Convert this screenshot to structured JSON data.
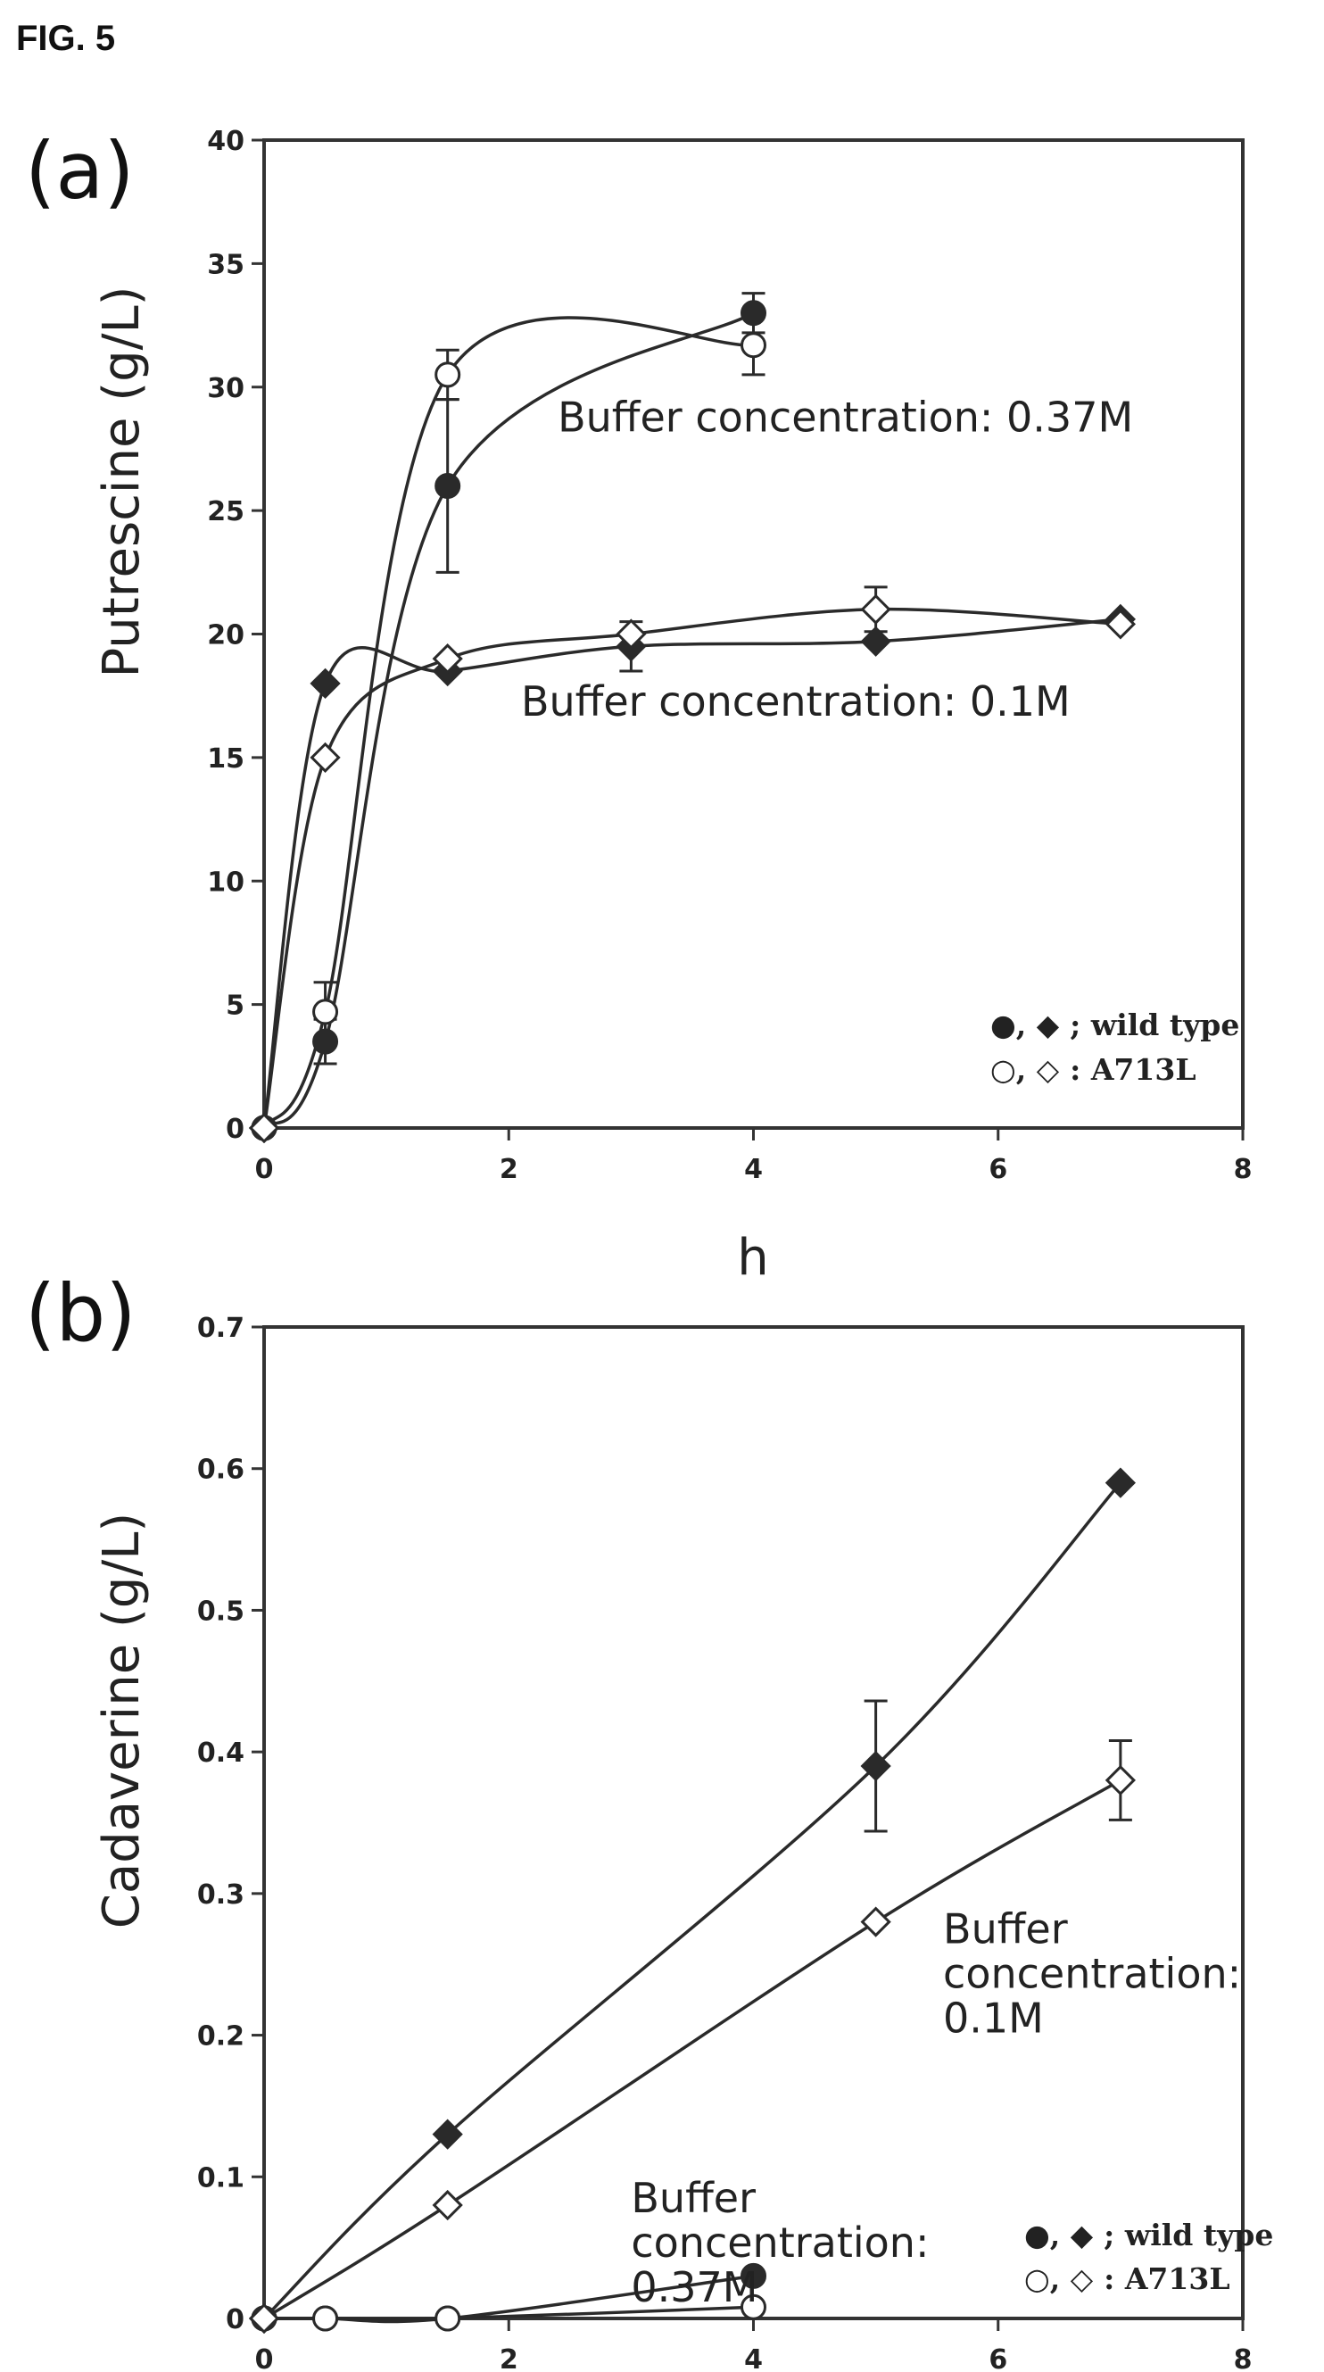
{
  "figure_title": "FIG. 5",
  "colors": {
    "mark": "#2a2a2a",
    "open_fill": "#ffffff",
    "frame": "#333333"
  },
  "chart_data": [
    {
      "type": "line",
      "panel": "(a)",
      "xlabel": "h",
      "ylabel": "Putrescine (g/L)",
      "xlim": [
        0,
        8
      ],
      "ylim": [
        0,
        40
      ],
      "xticks": [
        "0",
        "2",
        "4",
        "6",
        "8"
      ],
      "yticks": [
        "0",
        "5",
        "10",
        "15",
        "20",
        "25",
        "30",
        "35",
        "40"
      ],
      "legend": {
        "position": "bottom-right",
        "entries": [
          {
            "symbols": "●, ◆",
            "text": "; wild type"
          },
          {
            "symbols": "○, ◇",
            "text": ": A713L"
          }
        ]
      },
      "annotations": [
        {
          "text": "Buffer concentration: 0.37M",
          "x": 2.4,
          "y": 28.2
        },
        {
          "text": "Buffer concentration: 0.1M",
          "x": 2.1,
          "y": 16.7
        }
      ],
      "series": [
        {
          "marker": "circle-filled",
          "x": [
            0,
            0.5,
            1.5,
            4
          ],
          "y": [
            0,
            3.5,
            26.0,
            33.0
          ],
          "err": [
            0,
            0.9,
            3.5,
            0.8
          ]
        },
        {
          "marker": "circle-open",
          "x": [
            0,
            0.5,
            1.5,
            4
          ],
          "y": [
            0,
            4.7,
            30.5,
            31.7
          ],
          "err": [
            0,
            1.2,
            1.0,
            1.2
          ]
        },
        {
          "marker": "diamond-filled",
          "x": [
            0,
            0.5,
            1.5,
            3,
            5,
            7
          ],
          "y": [
            0,
            18.0,
            18.5,
            19.5,
            19.7,
            20.6
          ],
          "err": [
            0,
            0,
            0,
            1.0,
            0,
            0
          ]
        },
        {
          "marker": "diamond-open",
          "x": [
            0,
            0.5,
            1.5,
            3,
            5,
            7
          ],
          "y": [
            0,
            15.0,
            19.0,
            20.0,
            21.0,
            20.4
          ],
          "err": [
            0,
            0,
            0,
            0,
            0.9,
            0
          ]
        }
      ]
    },
    {
      "type": "line",
      "panel": "(b)",
      "xlabel": "",
      "ylabel": "Cadaverine (g/L)",
      "xlim": [
        0,
        8
      ],
      "ylim": [
        0,
        0.7
      ],
      "xticks": [
        "0",
        "2",
        "4",
        "6",
        "8"
      ],
      "yticks": [
        "0",
        "0.1",
        "0.2",
        "0.3",
        "0.4",
        "0.5",
        "0.6",
        "0.7"
      ],
      "legend": {
        "position": "bottom-right",
        "entries": [
          {
            "symbols": "●, ◆",
            "text": "; wild type"
          },
          {
            "symbols": "○, ◇",
            "text": ": A713L"
          }
        ]
      },
      "annotations": [
        {
          "lines": [
            "Buffer",
            "concentration:",
            "0.1M"
          ],
          "x": 5.55,
          "y": 0.265
        },
        {
          "lines": [
            "Buffer",
            "concentration:",
            "0.37M"
          ],
          "x": 3.0,
          "y": 0.075
        }
      ],
      "series": [
        {
          "marker": "circle-filled",
          "x": [
            0,
            0.5,
            1.5,
            4
          ],
          "y": [
            0,
            0,
            0,
            0.03
          ],
          "err": [
            0,
            0,
            0,
            0
          ]
        },
        {
          "marker": "circle-open",
          "x": [
            0,
            0.5,
            1.5,
            4
          ],
          "y": [
            0,
            0,
            0,
            0.008
          ],
          "err": [
            0,
            0,
            0,
            0
          ]
        },
        {
          "marker": "diamond-filled",
          "x": [
            0,
            1.5,
            5,
            7
          ],
          "y": [
            0,
            0.13,
            0.39,
            0.59
          ],
          "err": [
            0,
            0,
            0.046,
            0
          ]
        },
        {
          "marker": "diamond-open",
          "x": [
            0,
            1.5,
            5,
            7
          ],
          "y": [
            0,
            0.08,
            0.28,
            0.38
          ],
          "err": [
            0,
            0,
            0,
            0.028
          ]
        }
      ]
    }
  ]
}
